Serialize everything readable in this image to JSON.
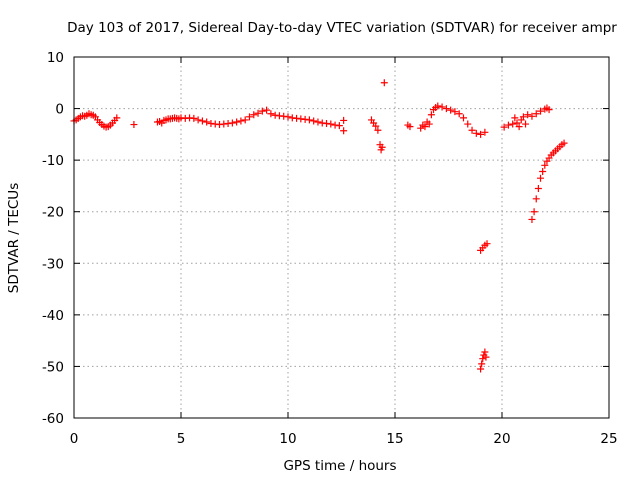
{
  "chart_data": {
    "type": "scatter",
    "title": "Day 103 of 2017, Sidereal Day-to-day VTEC variation (SDTVAR) for receiver ampr",
    "xlabel": "GPS time / hours",
    "ylabel": "SDTVAR / TECUs",
    "xlim": [
      0,
      25
    ],
    "ylim": [
      -60,
      10
    ],
    "xticks": [
      0,
      5,
      10,
      15,
      20,
      25
    ],
    "yticks": [
      10,
      0,
      -10,
      -20,
      -30,
      -40,
      -50,
      -60
    ],
    "grid": true,
    "legend": "none",
    "marker": "plus",
    "color": "#ff0000",
    "series": [
      {
        "points": [
          [
            0.0,
            -2.4
          ],
          [
            0.1,
            -2.2
          ],
          [
            0.2,
            -1.9
          ],
          [
            0.3,
            -1.6
          ],
          [
            0.4,
            -1.4
          ],
          [
            0.5,
            -1.5
          ],
          [
            0.6,
            -1.3
          ],
          [
            0.7,
            -1.0
          ],
          [
            0.8,
            -1.2
          ],
          [
            0.9,
            -1.3
          ],
          [
            1.0,
            -1.6
          ],
          [
            1.1,
            -2.2
          ],
          [
            1.2,
            -2.7
          ],
          [
            1.3,
            -3.1
          ],
          [
            1.4,
            -3.4
          ],
          [
            1.5,
            -3.6
          ],
          [
            1.6,
            -3.5
          ],
          [
            1.7,
            -3.2
          ],
          [
            1.8,
            -2.8
          ],
          [
            1.9,
            -2.3
          ],
          [
            2.0,
            -1.8
          ],
          [
            2.8,
            -3.1
          ],
          [
            3.9,
            -2.6
          ],
          [
            4.0,
            -2.5
          ],
          [
            4.1,
            -2.8
          ],
          [
            4.2,
            -2.3
          ],
          [
            4.3,
            -2.2
          ],
          [
            4.4,
            -2.0
          ],
          [
            4.5,
            -2.0
          ],
          [
            4.6,
            -1.9
          ],
          [
            4.7,
            -1.8
          ],
          [
            4.8,
            -1.9
          ],
          [
            4.9,
            -2.0
          ],
          [
            5.0,
            -1.8
          ],
          [
            5.2,
            -1.9
          ],
          [
            5.4,
            -1.8
          ],
          [
            5.6,
            -1.9
          ],
          [
            5.8,
            -2.2
          ],
          [
            6.0,
            -2.4
          ],
          [
            6.2,
            -2.6
          ],
          [
            6.4,
            -2.9
          ],
          [
            6.6,
            -3.0
          ],
          [
            6.8,
            -3.1
          ],
          [
            7.0,
            -3.0
          ],
          [
            7.2,
            -2.9
          ],
          [
            7.4,
            -2.8
          ],
          [
            7.6,
            -2.6
          ],
          [
            7.8,
            -2.4
          ],
          [
            8.0,
            -2.2
          ],
          [
            8.2,
            -1.6
          ],
          [
            8.4,
            -1.2
          ],
          [
            8.6,
            -0.9
          ],
          [
            8.8,
            -0.5
          ],
          [
            9.0,
            -0.3
          ],
          [
            9.2,
            -1.0
          ],
          [
            9.4,
            -1.3
          ],
          [
            9.6,
            -1.4
          ],
          [
            9.8,
            -1.5
          ],
          [
            10.0,
            -1.6
          ],
          [
            10.2,
            -1.8
          ],
          [
            10.4,
            -1.9
          ],
          [
            10.6,
            -2.0
          ],
          [
            10.8,
            -2.1
          ],
          [
            11.0,
            -2.2
          ],
          [
            11.2,
            -2.4
          ],
          [
            11.4,
            -2.6
          ],
          [
            11.6,
            -2.8
          ],
          [
            11.8,
            -2.9
          ],
          [
            12.0,
            -3.0
          ],
          [
            12.2,
            -3.2
          ],
          [
            12.4,
            -3.3
          ],
          [
            12.6,
            -2.3
          ],
          [
            12.6,
            -4.3
          ],
          [
            13.9,
            -2.2
          ],
          [
            14.0,
            -2.8
          ],
          [
            14.1,
            -3.4
          ],
          [
            14.2,
            -4.2
          ],
          [
            14.3,
            -7.0
          ],
          [
            14.35,
            -8.0
          ],
          [
            14.4,
            -7.5
          ],
          [
            14.5,
            5.0
          ],
          [
            15.6,
            -3.2
          ],
          [
            15.7,
            -3.5
          ],
          [
            16.2,
            -3.8
          ],
          [
            16.3,
            -3.2
          ],
          [
            16.4,
            -3.5
          ],
          [
            16.5,
            -2.6
          ],
          [
            16.6,
            -3.0
          ],
          [
            16.7,
            -1.2
          ],
          [
            16.8,
            -0.2
          ],
          [
            16.9,
            0.2
          ],
          [
            17.0,
            0.5
          ],
          [
            17.2,
            0.3
          ],
          [
            17.4,
            0.0
          ],
          [
            17.6,
            -0.3
          ],
          [
            17.8,
            -0.6
          ],
          [
            18.0,
            -1.0
          ],
          [
            18.2,
            -1.8
          ],
          [
            18.4,
            -3.0
          ],
          [
            18.6,
            -4.2
          ],
          [
            18.8,
            -4.8
          ],
          [
            19.0,
            -5.0
          ],
          [
            19.2,
            -4.6
          ],
          [
            19.0,
            -27.5
          ],
          [
            19.1,
            -27.0
          ],
          [
            19.2,
            -26.5
          ],
          [
            19.3,
            -26.2
          ],
          [
            19.0,
            -50.5
          ],
          [
            19.05,
            -49.5
          ],
          [
            19.1,
            -48.5
          ],
          [
            19.15,
            -47.8
          ],
          [
            19.2,
            -47.2
          ],
          [
            19.25,
            -48.2
          ],
          [
            20.1,
            -3.6
          ],
          [
            20.3,
            -3.2
          ],
          [
            20.5,
            -3.0
          ],
          [
            20.6,
            -1.8
          ],
          [
            20.7,
            -2.8
          ],
          [
            20.8,
            -3.5
          ],
          [
            20.9,
            -2.2
          ],
          [
            21.0,
            -1.6
          ],
          [
            21.1,
            -3.0
          ],
          [
            21.2,
            -1.2
          ],
          [
            21.4,
            -1.5
          ],
          [
            21.6,
            -1.0
          ],
          [
            21.8,
            -0.5
          ],
          [
            22.0,
            -0.1
          ],
          [
            22.1,
            0.1
          ],
          [
            22.2,
            -0.2
          ],
          [
            21.4,
            -21.5
          ],
          [
            21.5,
            -20.0
          ],
          [
            21.6,
            -17.5
          ],
          [
            21.7,
            -15.5
          ],
          [
            21.8,
            -13.5
          ],
          [
            21.9,
            -12.2
          ],
          [
            22.0,
            -11.0
          ],
          [
            22.1,
            -10.2
          ],
          [
            22.2,
            -9.6
          ],
          [
            22.3,
            -9.0
          ],
          [
            22.4,
            -8.6
          ],
          [
            22.5,
            -8.2
          ],
          [
            22.6,
            -7.8
          ],
          [
            22.7,
            -7.4
          ],
          [
            22.8,
            -7.0
          ],
          [
            22.9,
            -6.7
          ]
        ]
      }
    ]
  }
}
